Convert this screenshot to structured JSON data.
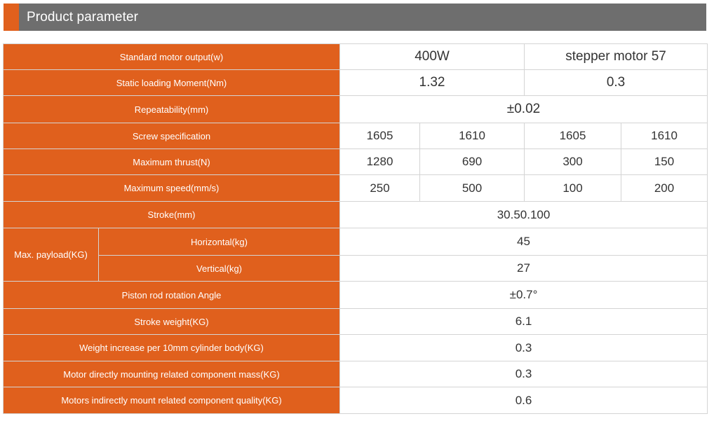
{
  "header": {
    "title": "Product parameter",
    "accent_color": "#e0601d",
    "bar_color": "#6e6e6e"
  },
  "table": {
    "label_color": "#e0601d",
    "motor_output": {
      "label": "Standard motor output(w)",
      "v1": "400W",
      "v2": "stepper motor 57"
    },
    "static_moment": {
      "label": "Static loading Moment(Nm)",
      "v1": "1.32",
      "v2": "0.3"
    },
    "repeatability": {
      "label": "Repeatability(mm)",
      "v": "±0.02"
    },
    "screw_spec": {
      "label": "Screw specification",
      "values": [
        "1605",
        "1610",
        "1605",
        "1610"
      ]
    },
    "max_thrust": {
      "label": "Maximum thrust(N)",
      "values": [
        "1280",
        "690",
        "300",
        "150"
      ]
    },
    "max_speed": {
      "label": "Maximum speed(mm/s)",
      "values": [
        "250",
        "500",
        "100",
        "200"
      ]
    },
    "stroke": {
      "label": "Stroke(mm)",
      "v": "30.50.100"
    },
    "payload": {
      "group_label": "Max. payload(KG)",
      "horizontal": {
        "label": "Horizontal(kg)",
        "v": "45"
      },
      "vertical": {
        "label": "Vertical(kg)",
        "v": "27"
      }
    },
    "rotation_angle": {
      "label": "Piston rod rotation Angle",
      "v": "±0.7°"
    },
    "stroke_weight": {
      "label": "Stroke weight(KG)",
      "v": "6.1"
    },
    "weight_increase": {
      "label": "Weight increase per 10mm cylinder body(KG)",
      "v": "0.3"
    },
    "direct_mount_mass": {
      "label": "Motor directly mounting related component mass(KG)",
      "v": "0.3"
    },
    "indirect_mount_quality": {
      "label": "Motors indirectly mount related component quality(KG)",
      "v": "0.6"
    }
  }
}
